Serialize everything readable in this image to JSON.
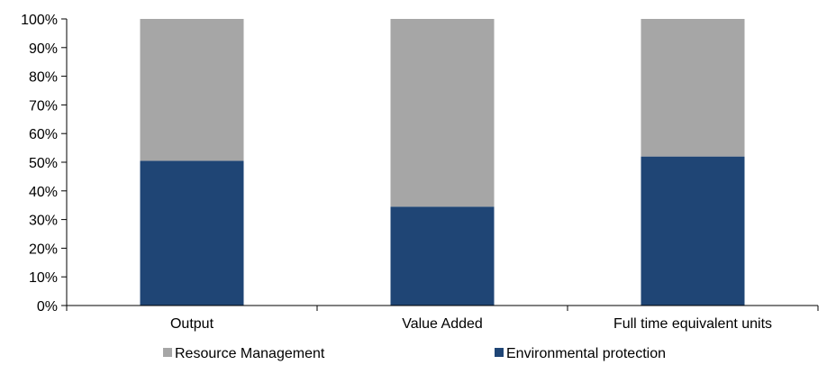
{
  "chart_data": {
    "type": "bar",
    "stacked": true,
    "percent": true,
    "categories": [
      "Output",
      "Value Added",
      "Full time equivalent units"
    ],
    "series": [
      {
        "name": "Environmental protection",
        "values": [
          50.5,
          34.5,
          52
        ],
        "color": "#1f4575"
      },
      {
        "name": "Resource Management",
        "values": [
          49.5,
          65.5,
          48
        ],
        "color": "#a6a6a6"
      }
    ],
    "ylim": [
      0,
      100
    ],
    "yticks": [
      "0%",
      "10%",
      "20%",
      "30%",
      "40%",
      "50%",
      "60%",
      "70%",
      "80%",
      "90%",
      "100%"
    ],
    "grid": false,
    "legend_position": "bottom",
    "legend": [
      {
        "name": "Resource Management",
        "color": "#a6a6a6"
      },
      {
        "name": "Environmental protection",
        "color": "#1f4575"
      }
    ]
  }
}
